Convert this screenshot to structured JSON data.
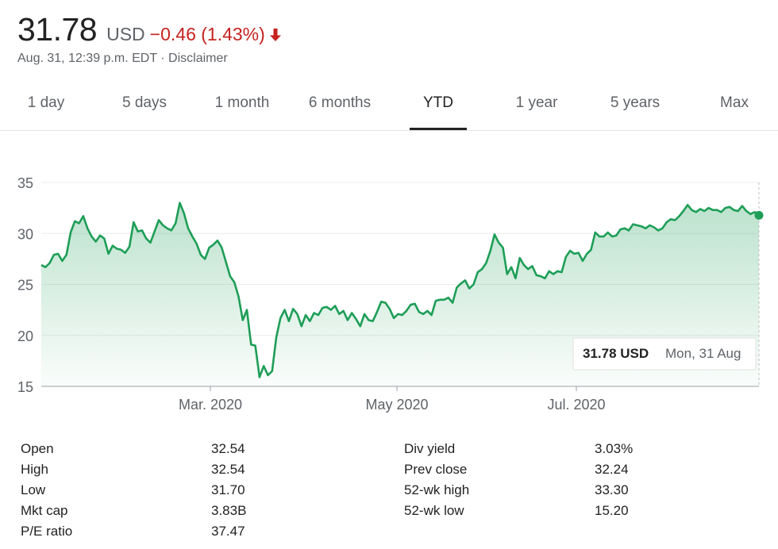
{
  "quote": {
    "price": "31.78",
    "currency": "USD",
    "change": "−0.46 (1.43%)",
    "direction_icon": "arrow-down-icon",
    "change_color": "#c5221f",
    "timestamp": "Aug. 31, 12:39 p.m. EDT",
    "separator": " · ",
    "disclaimer": "Disclaimer"
  },
  "tabs": [
    {
      "label": "1 day",
      "active": false
    },
    {
      "label": "5 days",
      "active": false
    },
    {
      "label": "1 month",
      "active": false
    },
    {
      "label": "6 months",
      "active": false
    },
    {
      "label": "YTD",
      "active": true
    },
    {
      "label": "1 year",
      "active": false
    },
    {
      "label": "5 years",
      "active": false
    },
    {
      "label": "Max",
      "active": false
    }
  ],
  "chart_data": {
    "type": "area",
    "line_color": "#1e9e57",
    "ylim": [
      15,
      35
    ],
    "yticks": [
      "35",
      "30",
      "25",
      "20",
      "15"
    ],
    "xticks": [
      "Mar. 2020",
      "May 2020",
      "Jul. 2020"
    ],
    "grid": true,
    "values": [
      26.9,
      26.7,
      27.1,
      27.9,
      28.0,
      27.3,
      27.9,
      30.1,
      31.2,
      31.0,
      31.7,
      30.5,
      29.7,
      29.2,
      29.8,
      29.5,
      28.0,
      28.8,
      28.5,
      28.4,
      28.1,
      28.7,
      31.1,
      30.2,
      30.3,
      29.5,
      29.1,
      30.2,
      31.3,
      30.8,
      30.5,
      30.3,
      31.0,
      33.0,
      32.0,
      30.5,
      29.7,
      29.0,
      27.9,
      27.5,
      28.6,
      28.9,
      29.3,
      28.6,
      27.2,
      25.8,
      25.2,
      23.8,
      21.5,
      22.5,
      19.1,
      19.0,
      15.9,
      17.0,
      16.1,
      16.5,
      19.8,
      21.7,
      22.5,
      21.4,
      22.6,
      22.1,
      20.9,
      22.0,
      21.4,
      22.2,
      22.0,
      22.7,
      22.8,
      22.5,
      22.9,
      22.1,
      22.4,
      21.5,
      22.2,
      21.6,
      20.9,
      22.1,
      21.5,
      21.4,
      22.3,
      23.3,
      23.2,
      22.6,
      21.7,
      22.1,
      22.0,
      22.4,
      23.0,
      23.1,
      22.3,
      22.1,
      22.4,
      22.0,
      23.4,
      23.5,
      23.5,
      23.7,
      23.2,
      24.7,
      25.1,
      25.4,
      24.6,
      25.0,
      26.2,
      26.5,
      27.1,
      28.3,
      29.9,
      29.1,
      28.6,
      26.0,
      26.7,
      25.6,
      27.6,
      26.9,
      26.5,
      26.8,
      25.9,
      25.8,
      25.6,
      26.3,
      26.0,
      26.3,
      26.2,
      27.7,
      28.3,
      28.0,
      28.1,
      27.3,
      28.0,
      28.4,
      30.1,
      29.7,
      29.7,
      30.1,
      29.7,
      29.8,
      30.4,
      30.5,
      30.3,
      30.9,
      30.8,
      30.7,
      30.5,
      30.8,
      30.6,
      30.3,
      30.5,
      31.1,
      31.4,
      31.3,
      31.7,
      32.2,
      32.8,
      32.3,
      32.1,
      32.4,
      32.2,
      32.5,
      32.3,
      32.3,
      32.1,
      32.5,
      32.6,
      32.3,
      32.2,
      32.7,
      32.2,
      31.9,
      32.1,
      31.78
    ],
    "tooltip": {
      "price": "31.78 USD",
      "date": "Mon, 31 Aug"
    }
  },
  "stats": [
    {
      "label": "Open",
      "value": "32.54"
    },
    {
      "label": "High",
      "value": "32.54"
    },
    {
      "label": "Low",
      "value": "31.70"
    },
    {
      "label": "Mkt cap",
      "value": "3.83B"
    },
    {
      "label": "P/E ratio",
      "value": "37.47"
    },
    {
      "label": "Div yield",
      "value": "3.03%"
    },
    {
      "label": "Prev close",
      "value": "32.24"
    },
    {
      "label": "52-wk high",
      "value": "33.30"
    },
    {
      "label": "52-wk low",
      "value": "15.20"
    }
  ]
}
